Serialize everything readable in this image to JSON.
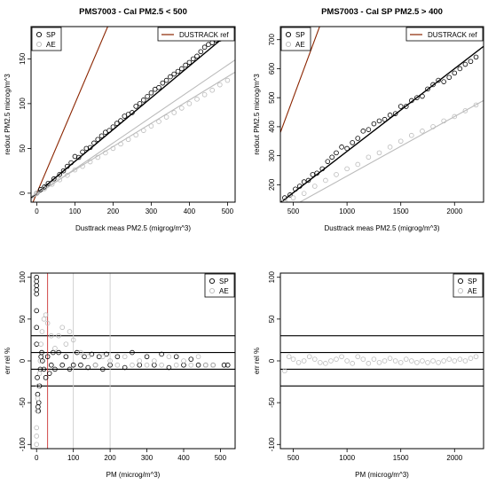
{
  "chart_data": [
    {
      "type": "scatter",
      "title": "PMS7003 - Cal PM2.5 < 500",
      "xlabel": "Dusttrack meas PM2.5 (migrog/m^3)",
      "ylabel": "redout PM2.5 microg/m^3",
      "xlim": [
        -15,
        520
      ],
      "ylim": [
        -10,
        186
      ],
      "xticks": [
        0,
        100,
        200,
        300,
        400,
        500
      ],
      "yticks": [
        0,
        50,
        100,
        150
      ],
      "legend_left": [
        {
          "label": "SP",
          "color": "#000000",
          "symbol": "circle"
        },
        {
          "label": "AE",
          "color": "#bbbbbb",
          "symbol": "circle"
        }
      ],
      "legend_right": [
        {
          "label": "DUSTRACK ref",
          "color": "#8b2500",
          "symbol": "line"
        }
      ],
      "series": [
        {
          "name": "SP",
          "color": "#000000",
          "x": [
            0,
            10,
            20,
            30,
            45,
            60,
            70,
            80,
            90,
            100,
            110,
            120,
            130,
            140,
            150,
            160,
            170,
            180,
            190,
            200,
            210,
            220,
            230,
            240,
            250,
            260,
            270,
            280,
            290,
            300,
            310,
            320,
            330,
            340,
            350,
            360,
            370,
            380,
            390,
            400,
            410,
            420,
            430,
            440,
            450,
            460,
            470,
            480,
            490
          ],
          "y": [
            0,
            4,
            7,
            11,
            16,
            21,
            25,
            30,
            34,
            41,
            40,
            46,
            50,
            51,
            56,
            60,
            64,
            68,
            70,
            74,
            78,
            81,
            86,
            88,
            90,
            97,
            100,
            104,
            108,
            112,
            116,
            118,
            123,
            126,
            130,
            133,
            136,
            139,
            143,
            146,
            150,
            153,
            158,
            163,
            166,
            168,
            171,
            172,
            174
          ]
        },
        {
          "name": "AE",
          "color": "#bbbbbb",
          "x": [
            0,
            20,
            40,
            60,
            80,
            100,
            120,
            140,
            160,
            180,
            200,
            220,
            240,
            260,
            280,
            300,
            320,
            340,
            360,
            380,
            400,
            420,
            440,
            460,
            480,
            500
          ],
          "y": [
            0,
            5,
            10,
            15,
            20,
            26,
            30,
            35,
            40,
            45,
            50,
            55,
            60,
            65,
            70,
            75,
            80,
            85,
            90,
            95,
            100,
            105,
            110,
            115,
            121,
            126
          ]
        }
      ],
      "lines": [
        {
          "role": "ref",
          "color": "#8b2500",
          "slope": 1.0,
          "intercept": 0
        },
        {
          "role": "fit-sp",
          "color": "#000000",
          "slope": 0.355,
          "intercept": 0
        },
        {
          "role": "fit-ae",
          "color": "#bbbbbb",
          "slope": 0.26,
          "intercept": 0
        },
        {
          "role": "fit-ae2",
          "color": "#bbbbbb",
          "slope": 0.29,
          "intercept": -2
        }
      ]
    },
    {
      "type": "scatter",
      "title": "PMS7003 - Cal SP PM2.5 > 400",
      "xlabel": "Dusttrack meas PM2.5 (migrog/m^3)",
      "ylabel": "redout PM2.5 microg/m^3",
      "xlim": [
        380,
        2270
      ],
      "ylim": [
        140,
        745
      ],
      "xticks": [
        500,
        1000,
        1500,
        2000
      ],
      "yticks": [
        200,
        300,
        400,
        500,
        600,
        700
      ],
      "legend_left": [
        {
          "label": "SP",
          "color": "#000000",
          "symbol": "circle"
        },
        {
          "label": "AE",
          "color": "#bbbbbb",
          "symbol": "circle"
        }
      ],
      "legend_right": [
        {
          "label": "DUSTRACK ref",
          "color": "#8b2500",
          "symbol": "line"
        }
      ],
      "series": [
        {
          "name": "SP",
          "color": "#000000",
          "x": [
            420,
            470,
            520,
            560,
            600,
            640,
            680,
            720,
            770,
            820,
            860,
            900,
            950,
            1000,
            1050,
            1100,
            1150,
            1200,
            1250,
            1300,
            1350,
            1400,
            1450,
            1500,
            1550,
            1600,
            1650,
            1700,
            1750,
            1800,
            1850,
            1900,
            1950,
            2000,
            2050,
            2100,
            2150,
            2200
          ],
          "y": [
            155,
            165,
            185,
            195,
            210,
            215,
            235,
            240,
            255,
            280,
            295,
            310,
            330,
            325,
            345,
            360,
            385,
            390,
            410,
            420,
            425,
            440,
            445,
            470,
            470,
            490,
            500,
            505,
            530,
            545,
            560,
            555,
            570,
            585,
            600,
            615,
            625,
            640
          ]
        },
        {
          "name": "AE",
          "color": "#bbbbbb",
          "x": [
            420,
            500,
            600,
            700,
            800,
            900,
            1000,
            1100,
            1200,
            1300,
            1400,
            1500,
            1600,
            1700,
            1800,
            1900,
            2000,
            2100,
            2200
          ],
          "y": [
            145,
            155,
            170,
            195,
            215,
            235,
            255,
            270,
            295,
            310,
            330,
            350,
            370,
            385,
            400,
            420,
            435,
            455,
            475
          ]
        }
      ],
      "lines": [
        {
          "role": "ref",
          "color": "#8b2500",
          "slope": 1.0,
          "intercept": 0
        },
        {
          "role": "fit-sp",
          "color": "#000000",
          "slope": 0.285,
          "intercept": 30
        },
        {
          "role": "fit-ae",
          "color": "#bbbbbb",
          "slope": 0.205,
          "intercept": 25
        }
      ]
    },
    {
      "type": "scatter",
      "title": "",
      "xlabel": "PM (microg/m^3)",
      "ylabel": "err rel %",
      "xlim": [
        -15,
        540
      ],
      "ylim": [
        -105,
        105
      ],
      "xticks": [
        0,
        100,
        200,
        300,
        400,
        500
      ],
      "yticks": [
        -100,
        -50,
        0,
        50,
        100
      ],
      "legend_right": [
        {
          "label": "SP",
          "color": "#000000",
          "symbol": "circle"
        },
        {
          "label": "AE",
          "color": "#bbbbbb",
          "symbol": "circle"
        }
      ],
      "hlines": [
        30,
        10,
        -10,
        -30
      ],
      "vlines": [
        {
          "x": 30,
          "color": "#cc3333"
        },
        {
          "x": 100,
          "color": "#cccccc"
        },
        {
          "x": 200,
          "color": "#cccccc"
        }
      ],
      "series": [
        {
          "name": "SP",
          "color": "#000000",
          "x": [
            0,
            0,
            0,
            0,
            0,
            0,
            0,
            0,
            2,
            3,
            4,
            5,
            6,
            8,
            10,
            12,
            14,
            16,
            20,
            25,
            30,
            35,
            40,
            45,
            50,
            60,
            70,
            80,
            90,
            100,
            110,
            120,
            130,
            140,
            150,
            160,
            170,
            180,
            190,
            200,
            220,
            240,
            260,
            280,
            300,
            320,
            340,
            360,
            380,
            400,
            420,
            440,
            460,
            480,
            510,
            520
          ],
          "y": [
            100,
            95,
            90,
            85,
            80,
            60,
            40,
            20,
            -20,
            -40,
            -55,
            -60,
            -50,
            -30,
            -10,
            5,
            10,
            0,
            -10,
            -20,
            5,
            -15,
            -5,
            10,
            -10,
            10,
            -5,
            5,
            -10,
            -5,
            10,
            -5,
            5,
            -8,
            8,
            -5,
            5,
            -10,
            8,
            -5,
            5,
            -8,
            10,
            -5,
            5,
            -5,
            8,
            -8,
            5,
            -5,
            2,
            -5,
            -5,
            -5,
            -5,
            -5
          ]
        },
        {
          "name": "AE",
          "color": "#bbbbbb",
          "x": [
            0,
            0,
            0,
            2,
            3,
            5,
            8,
            10,
            12,
            15,
            20,
            25,
            30,
            40,
            50,
            60,
            70,
            80,
            90,
            100,
            120,
            140,
            160,
            180,
            200,
            220,
            240,
            260,
            280,
            300,
            320,
            340,
            360,
            380,
            400,
            420,
            440,
            460,
            480
          ],
          "y": [
            -100,
            -90,
            -80,
            -60,
            -45,
            -30,
            -15,
            0,
            20,
            35,
            50,
            55,
            45,
            30,
            15,
            30,
            40,
            20,
            35,
            25,
            10,
            5,
            -5,
            5,
            0,
            -5,
            5,
            -5,
            0,
            -5,
            0,
            -5,
            5,
            -5,
            0,
            -5,
            5,
            -5,
            -5
          ]
        }
      ]
    },
    {
      "type": "scatter",
      "title": "",
      "xlabel": "PM (microg/m^3)",
      "ylabel": "err rel %",
      "xlim": [
        380,
        2270
      ],
      "ylim": [
        -105,
        105
      ],
      "xticks": [
        500,
        1000,
        1500,
        2000
      ],
      "yticks": [
        -100,
        -50,
        0,
        50,
        100
      ],
      "legend_right": [
        {
          "label": "SP",
          "color": "#000000",
          "symbol": "circle"
        },
        {
          "label": "AE",
          "color": "#bbbbbb",
          "symbol": "circle"
        }
      ],
      "hlines": [
        30,
        10,
        -10,
        -30
      ],
      "series": [
        {
          "name": "AE",
          "color": "#bbbbbb",
          "x": [
            420,
            460,
            500,
            550,
            600,
            650,
            700,
            750,
            800,
            850,
            900,
            950,
            1000,
            1050,
            1100,
            1150,
            1200,
            1250,
            1300,
            1350,
            1400,
            1450,
            1500,
            1550,
            1600,
            1650,
            1700,
            1750,
            1800,
            1850,
            1900,
            1950,
            2000,
            2050,
            2100,
            2150,
            2200
          ],
          "y": [
            -12,
            5,
            2,
            -2,
            0,
            5,
            2,
            -2,
            -3,
            0,
            2,
            5,
            0,
            -3,
            5,
            2,
            -3,
            2,
            -2,
            0,
            3,
            0,
            -2,
            2,
            0,
            -2,
            0,
            -2,
            0,
            -2,
            0,
            2,
            0,
            2,
            0,
            3,
            5
          ]
        }
      ]
    }
  ]
}
